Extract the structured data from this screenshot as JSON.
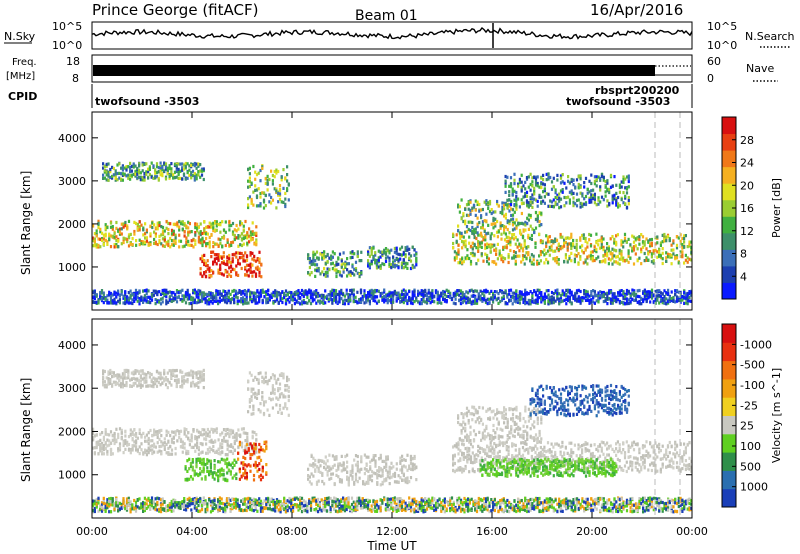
{
  "header": {
    "station": "Prince George (fitACF)",
    "beam": "Beam 01",
    "date": "16/Apr/2016"
  },
  "top_panels": {
    "nsky_label": "N.Sky",
    "nsky_ticks": [
      "10^5",
      "10^0"
    ],
    "nsearch_label": "N.Search",
    "nsearch_ticks": [
      "10^5",
      "10^0"
    ],
    "freq_label_1": "Freq.",
    "freq_label_2": "[MHz]",
    "freq_ticks": [
      "18",
      "8"
    ],
    "nave_label": "Nave",
    "nave_ticks": [
      "60",
      "0"
    ],
    "cpid_label": "CPID",
    "cpid_left": "twofsound -3503",
    "cpid_right_1": "rbsprt200200",
    "cpid_right_2": "twofsound -3503"
  },
  "chart_data": [
    {
      "type": "heatmap",
      "name": "power-panel",
      "ylabel": "Slant Range [km]",
      "ylim": [
        0,
        4600
      ],
      "yticks": [
        "1000",
        "2000",
        "3000",
        "4000"
      ],
      "x_ticks": [
        "00:00",
        "04:00",
        "08:00",
        "12:00",
        "16:00",
        "20:00",
        "00:00"
      ],
      "x_range_hours": [
        0,
        24
      ],
      "colorbar": {
        "title": "Power [dB]",
        "labels": [
          "4",
          "8",
          "12",
          "16",
          "20",
          "24",
          "28"
        ],
        "colors": [
          "#0a1aff",
          "#1c3fb0",
          "#3b6fb8",
          "#3d8f6a",
          "#40b040",
          "#9acd32",
          "#e0e020",
          "#f5b020",
          "#f07818",
          "#e84012",
          "#d81010"
        ]
      },
      "echo_bands": [
        {
          "t0": 0.0,
          "t1": 6.6,
          "r0": 1500,
          "r1": 2100,
          "level": 0.6
        },
        {
          "t0": 4.3,
          "t1": 6.8,
          "r0": 800,
          "r1": 1400,
          "level": 0.9
        },
        {
          "t0": 0.4,
          "t1": 4.5,
          "r0": 3050,
          "r1": 3450,
          "level": 0.35
        },
        {
          "t0": 6.2,
          "t1": 7.9,
          "r0": 2400,
          "r1": 3400,
          "level": 0.45
        },
        {
          "t0": 8.6,
          "t1": 10.8,
          "r0": 800,
          "r1": 1400,
          "level": 0.35
        },
        {
          "t0": 11.0,
          "t1": 13.0,
          "r0": 1000,
          "r1": 1500,
          "level": 0.3
        },
        {
          "t0": 14.4,
          "t1": 24.0,
          "r0": 1100,
          "r1": 1800,
          "level": 0.55
        },
        {
          "t0": 14.6,
          "t1": 18.0,
          "r0": 1800,
          "r1": 2600,
          "level": 0.45
        },
        {
          "t0": 16.5,
          "t1": 21.5,
          "r0": 2400,
          "r1": 3200,
          "level": 0.3
        },
        {
          "t0": 0.0,
          "t1": 24.0,
          "r0": 180,
          "r1": 500,
          "level": 0.15
        }
      ]
    },
    {
      "type": "heatmap",
      "name": "velocity-panel",
      "ylabel": "Slant Range [km]",
      "ylim": [
        0,
        4600
      ],
      "yticks": [
        "1000",
        "2000",
        "3000",
        "4000"
      ],
      "x_ticks": [
        "00:00",
        "04:00",
        "08:00",
        "12:00",
        "16:00",
        "20:00",
        "00:00"
      ],
      "x_range_hours": [
        0,
        24
      ],
      "xlabel": "Time UT",
      "colorbar": {
        "title": "Velocity [m s^-1]",
        "labels": [
          "1000",
          "500",
          "100",
          "25",
          "-25",
          "-100",
          "-500",
          "-1000"
        ],
        "colors": [
          "#1a3fb8",
          "#2a6fb0",
          "#2f8f4a",
          "#5fd020",
          "#c8c8c0",
          "#f0d020",
          "#f0a010",
          "#f07010",
          "#e83010",
          "#d81010"
        ]
      },
      "echo_bands": [
        {
          "t0": 0.0,
          "t1": 6.6,
          "r0": 1500,
          "r1": 2100,
          "vel": "ground"
        },
        {
          "t0": 3.7,
          "t1": 5.8,
          "r0": 900,
          "r1": 1400,
          "vel": "pos_small"
        },
        {
          "t0": 5.8,
          "t1": 7.0,
          "r0": 900,
          "r1": 1800,
          "vel": "neg"
        },
        {
          "t0": 0.4,
          "t1": 4.5,
          "r0": 3050,
          "r1": 3450,
          "vel": "ground"
        },
        {
          "t0": 6.2,
          "t1": 7.9,
          "r0": 2400,
          "r1": 3400,
          "vel": "ground"
        },
        {
          "t0": 8.6,
          "t1": 13.0,
          "r0": 800,
          "r1": 1500,
          "vel": "ground"
        },
        {
          "t0": 14.4,
          "t1": 24.0,
          "r0": 1100,
          "r1": 1800,
          "vel": "ground"
        },
        {
          "t0": 14.6,
          "t1": 18.0,
          "r0": 1800,
          "r1": 2600,
          "vel": "ground"
        },
        {
          "t0": 17.5,
          "t1": 21.5,
          "r0": 2400,
          "r1": 3100,
          "vel": "pos_large"
        },
        {
          "t0": 15.5,
          "t1": 21.0,
          "r0": 1000,
          "r1": 1400,
          "vel": "pos_small"
        },
        {
          "t0": 0.0,
          "t1": 24.0,
          "r0": 180,
          "r1": 500,
          "vel": "mixed"
        }
      ]
    }
  ]
}
